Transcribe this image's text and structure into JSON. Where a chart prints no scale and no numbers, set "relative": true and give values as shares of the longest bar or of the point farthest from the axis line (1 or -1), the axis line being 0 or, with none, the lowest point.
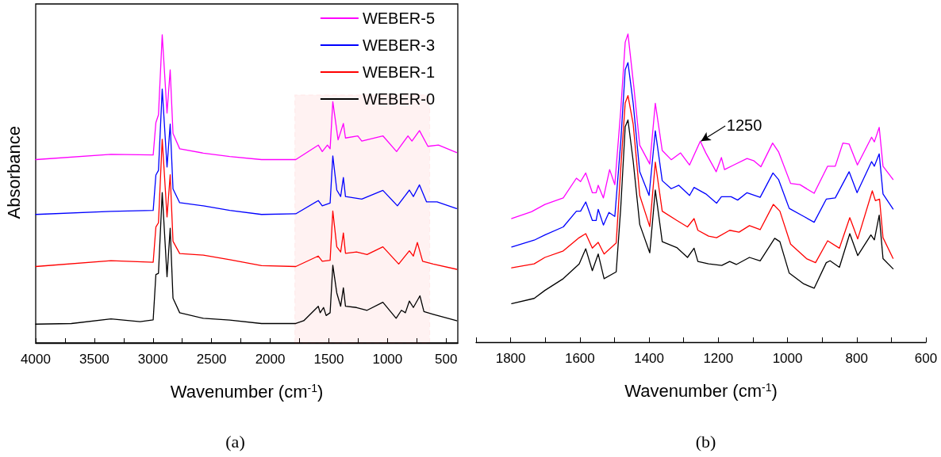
{
  "chart_data": [
    {
      "type": "line",
      "title": "(a)",
      "xlabel": "Wavenumber (cm$^{-1}$)",
      "ylabel": "Absorbance",
      "relative": true,
      "legend": "top right",
      "xlim": [
        4000,
        400
      ],
      "xticks": [
        4000,
        {
          "value": 3750,
          "label": null
        },
        3500,
        {
          "value": 3250,
          "label": null
        },
        3000,
        {
          "value": 2750,
          "label": null
        },
        2500,
        {
          "value": 2250,
          "label": null
        },
        2000,
        {
          "value": 1750,
          "label": null
        },
        1500,
        {
          "value": 1250,
          "label": null
        },
        1000,
        {
          "value": 750,
          "label": null
        },
        500
      ],
      "bands": [
        {
          "axis": "x",
          "from": 1790,
          "to": 640,
          "color": "#ff0000"
        }
      ],
      "series": [
        {
          "name": "WEBER-5",
          "color": "#ff00ff",
          "x": [
            4000,
            3358,
            2998,
            2975,
            2953,
            2921,
            2880,
            2853,
            2829,
            2772,
            2570,
            2345,
            2074,
            1782,
            1590,
            1556,
            1512,
            1489,
            1466,
            1421,
            1376,
            1358,
            1253,
            1219,
            1039,
            922,
            825,
            791,
            727,
            655,
            565,
            410
          ],
          "values": [
            0.595,
            0.612,
            0.61,
            0.715,
            0.74,
            1.0,
            0.746,
            0.886,
            0.68,
            0.63,
            0.616,
            0.605,
            0.595,
            0.595,
            0.642,
            0.621,
            0.642,
            0.63,
            0.783,
            0.659,
            0.712,
            0.665,
            0.672,
            0.655,
            0.672,
            0.621,
            0.672,
            0.655,
            0.689,
            0.638,
            0.642,
            0.618
          ]
        },
        {
          "name": "WEBER-3",
          "color": "#0000ff",
          "x": [
            4000,
            3358,
            2998,
            2975,
            2953,
            2921,
            2880,
            2853,
            2829,
            2772,
            2570,
            2345,
            2074,
            1782,
            1590,
            1556,
            1489,
            1466,
            1432,
            1399,
            1376,
            1358,
            1219,
            1039,
            915,
            813,
            779,
            727,
            667,
            577,
            410
          ],
          "values": [
            0.417,
            0.427,
            0.43,
            0.545,
            0.56,
            0.824,
            0.571,
            0.71,
            0.5,
            0.455,
            0.445,
            0.43,
            0.417,
            0.419,
            0.462,
            0.445,
            0.454,
            0.607,
            0.496,
            0.475,
            0.537,
            0.475,
            0.467,
            0.495,
            0.445,
            0.496,
            0.475,
            0.513,
            0.458,
            0.458,
            0.436
          ]
        },
        {
          "name": "WEBER-1",
          "color": "#ff0000",
          "x": [
            4000,
            3358,
            2998,
            2975,
            2953,
            2921,
            2880,
            2853,
            2829,
            2772,
            2570,
            2345,
            2074,
            1782,
            1590,
            1556,
            1489,
            1466,
            1432,
            1399,
            1376,
            1358,
            1264,
            1174,
            1039,
            904,
            813,
            779,
            745,
            700,
            610,
            410
          ],
          "values": [
            0.248,
            0.267,
            0.262,
            0.376,
            0.39,
            0.661,
            0.409,
            0.546,
            0.33,
            0.29,
            0.285,
            0.27,
            0.251,
            0.248,
            0.282,
            0.265,
            0.268,
            0.428,
            0.312,
            0.295,
            0.357,
            0.291,
            0.295,
            0.287,
            0.312,
            0.256,
            0.299,
            0.282,
            0.326,
            0.265,
            0.256,
            0.239
          ]
        },
        {
          "name": "WEBER-0",
          "color": "#000000",
          "x": [
            4000,
            3696,
            3358,
            3110,
            2998,
            2975,
            2953,
            2921,
            2880,
            2853,
            2829,
            2772,
            2570,
            2345,
            2074,
            1782,
            1714,
            1590,
            1574,
            1545,
            1523,
            1489,
            1466,
            1432,
            1399,
            1376,
            1358,
            1264,
            1174,
            1039,
            926,
            881,
            847,
            813,
            779,
            723,
            689,
            610,
            410
          ],
          "values": [
            0.061,
            0.063,
            0.078,
            0.069,
            0.075,
            0.222,
            0.226,
            0.488,
            0.215,
            0.372,
            0.145,
            0.098,
            0.08,
            0.074,
            0.063,
            0.063,
            0.072,
            0.119,
            0.098,
            0.115,
            0.089,
            0.098,
            0.252,
            0.162,
            0.119,
            0.179,
            0.119,
            0.115,
            0.106,
            0.132,
            0.08,
            0.106,
            0.098,
            0.136,
            0.115,
            0.153,
            0.102,
            0.093,
            0.072
          ]
        }
      ]
    },
    {
      "type": "line",
      "title": "(b)",
      "xlabel": "Wavenumber (cm$^{-1}$)",
      "relative": true,
      "xlim": [
        1900,
        600
      ],
      "xticks": [
        {
          "value": 1900,
          "label": null
        },
        1800,
        {
          "value": 1700,
          "label": null
        },
        1600,
        {
          "value": 1500,
          "label": null
        },
        1400,
        {
          "value": 1300,
          "label": null
        },
        1200,
        {
          "value": 1100,
          "label": null
        },
        1000,
        {
          "value": 900,
          "label": null
        },
        800,
        {
          "value": 700,
          "label": null
        },
        600
      ],
      "annotations": [
        {
          "text": "1250",
          "x": 1250,
          "y": 0.652
        }
      ],
      "series": [
        {
          "color": "#ff00ff",
          "x": [
            1797,
            1740,
            1701,
            1648,
            1610,
            1598,
            1583,
            1564,
            1553,
            1547,
            1532,
            1514,
            1499,
            1482,
            1469,
            1461,
            1444,
            1427,
            1398,
            1382,
            1362,
            1336,
            1309,
            1283,
            1252,
            1236,
            1206,
            1191,
            1182,
            1155,
            1117,
            1098,
            1077,
            1043,
            1026,
            991,
            964,
            923,
            884,
            862,
            840,
            822,
            798,
            757,
            749,
            735,
            724,
            695
          ],
          "values": [
            0.401,
            0.423,
            0.447,
            0.468,
            0.532,
            0.521,
            0.549,
            0.485,
            0.485,
            0.509,
            0.468,
            0.56,
            0.511,
            0.751,
            0.973,
            1.0,
            0.828,
            0.639,
            0.578,
            0.775,
            0.622,
            0.592,
            0.614,
            0.575,
            0.652,
            0.614,
            0.553,
            0.599,
            0.56,
            0.575,
            0.596,
            0.589,
            0.569,
            0.646,
            0.618,
            0.515,
            0.511,
            0.483,
            0.571,
            0.571,
            0.646,
            0.643,
            0.575,
            0.665,
            0.65,
            0.697,
            0.571,
            0.528
          ]
        },
        {
          "color": "#0000ff",
          "x": [
            1797,
            1732,
            1701,
            1648,
            1610,
            1598,
            1583,
            1564,
            1553,
            1547,
            1532,
            1516,
            1499,
            1482,
            1469,
            1461,
            1446,
            1427,
            1400,
            1382,
            1362,
            1336,
            1314,
            1283,
            1270,
            1236,
            1205,
            1191,
            1163,
            1144,
            1117,
            1079,
            1042,
            1026,
            995,
            953,
            923,
            888,
            862,
            822,
            799,
            757,
            749,
            735,
            724,
            695
          ],
          "values": [
            0.309,
            0.331,
            0.348,
            0.374,
            0.425,
            0.425,
            0.455,
            0.395,
            0.395,
            0.431,
            0.38,
            0.421,
            0.408,
            0.648,
            0.884,
            0.907,
            0.776,
            0.553,
            0.476,
            0.686,
            0.524,
            0.498,
            0.509,
            0.476,
            0.502,
            0.481,
            0.451,
            0.472,
            0.472,
            0.461,
            0.485,
            0.47,
            0.549,
            0.528,
            0.434,
            0.408,
            0.389,
            0.464,
            0.468,
            0.553,
            0.485,
            0.586,
            0.571,
            0.611,
            0.481,
            0.432
          ]
        },
        {
          "color": "#ff0000",
          "x": [
            1797,
            1732,
            1701,
            1648,
            1602,
            1583,
            1564,
            1547,
            1530,
            1495,
            1482,
            1469,
            1461,
            1446,
            1427,
            1398,
            1382,
            1362,
            1320,
            1289,
            1270,
            1259,
            1228,
            1205,
            1167,
            1140,
            1110,
            1079,
            1041,
            1022,
            991,
            945,
            919,
            884,
            850,
            820,
            797,
            755,
            746,
            734,
            724,
            695
          ],
          "values": [
            0.241,
            0.254,
            0.275,
            0.296,
            0.339,
            0.352,
            0.305,
            0.324,
            0.286,
            0.322,
            0.562,
            0.776,
            0.8,
            0.708,
            0.476,
            0.375,
            0.584,
            0.425,
            0.395,
            0.374,
            0.401,
            0.363,
            0.344,
            0.339,
            0.363,
            0.357,
            0.378,
            0.365,
            0.447,
            0.425,
            0.318,
            0.271,
            0.258,
            0.329,
            0.305,
            0.404,
            0.335,
            0.491,
            0.459,
            0.464,
            0.339,
            0.272
          ]
        },
        {
          "color": "#000000",
          "x": [
            1797,
            1732,
            1701,
            1648,
            1602,
            1583,
            1564,
            1547,
            1530,
            1495,
            1482,
            1469,
            1461,
            1446,
            1427,
            1398,
            1382,
            1362,
            1320,
            1289,
            1270,
            1259,
            1228,
            1190,
            1167,
            1148,
            1110,
            1079,
            1037,
            1022,
            995,
            953,
            923,
            888,
            877,
            850,
            820,
            797,
            759,
            749,
            735,
            724,
            695
          ],
          "values": [
            0.125,
            0.142,
            0.168,
            0.206,
            0.254,
            0.303,
            0.232,
            0.286,
            0.206,
            0.228,
            0.434,
            0.699,
            0.721,
            0.588,
            0.382,
            0.29,
            0.494,
            0.326,
            0.307,
            0.275,
            0.305,
            0.262,
            0.254,
            0.249,
            0.262,
            0.252,
            0.275,
            0.264,
            0.337,
            0.326,
            0.224,
            0.189,
            0.175,
            0.258,
            0.264,
            0.243,
            0.352,
            0.281,
            0.348,
            0.332,
            0.412,
            0.271,
            0.238
          ]
        }
      ]
    }
  ]
}
